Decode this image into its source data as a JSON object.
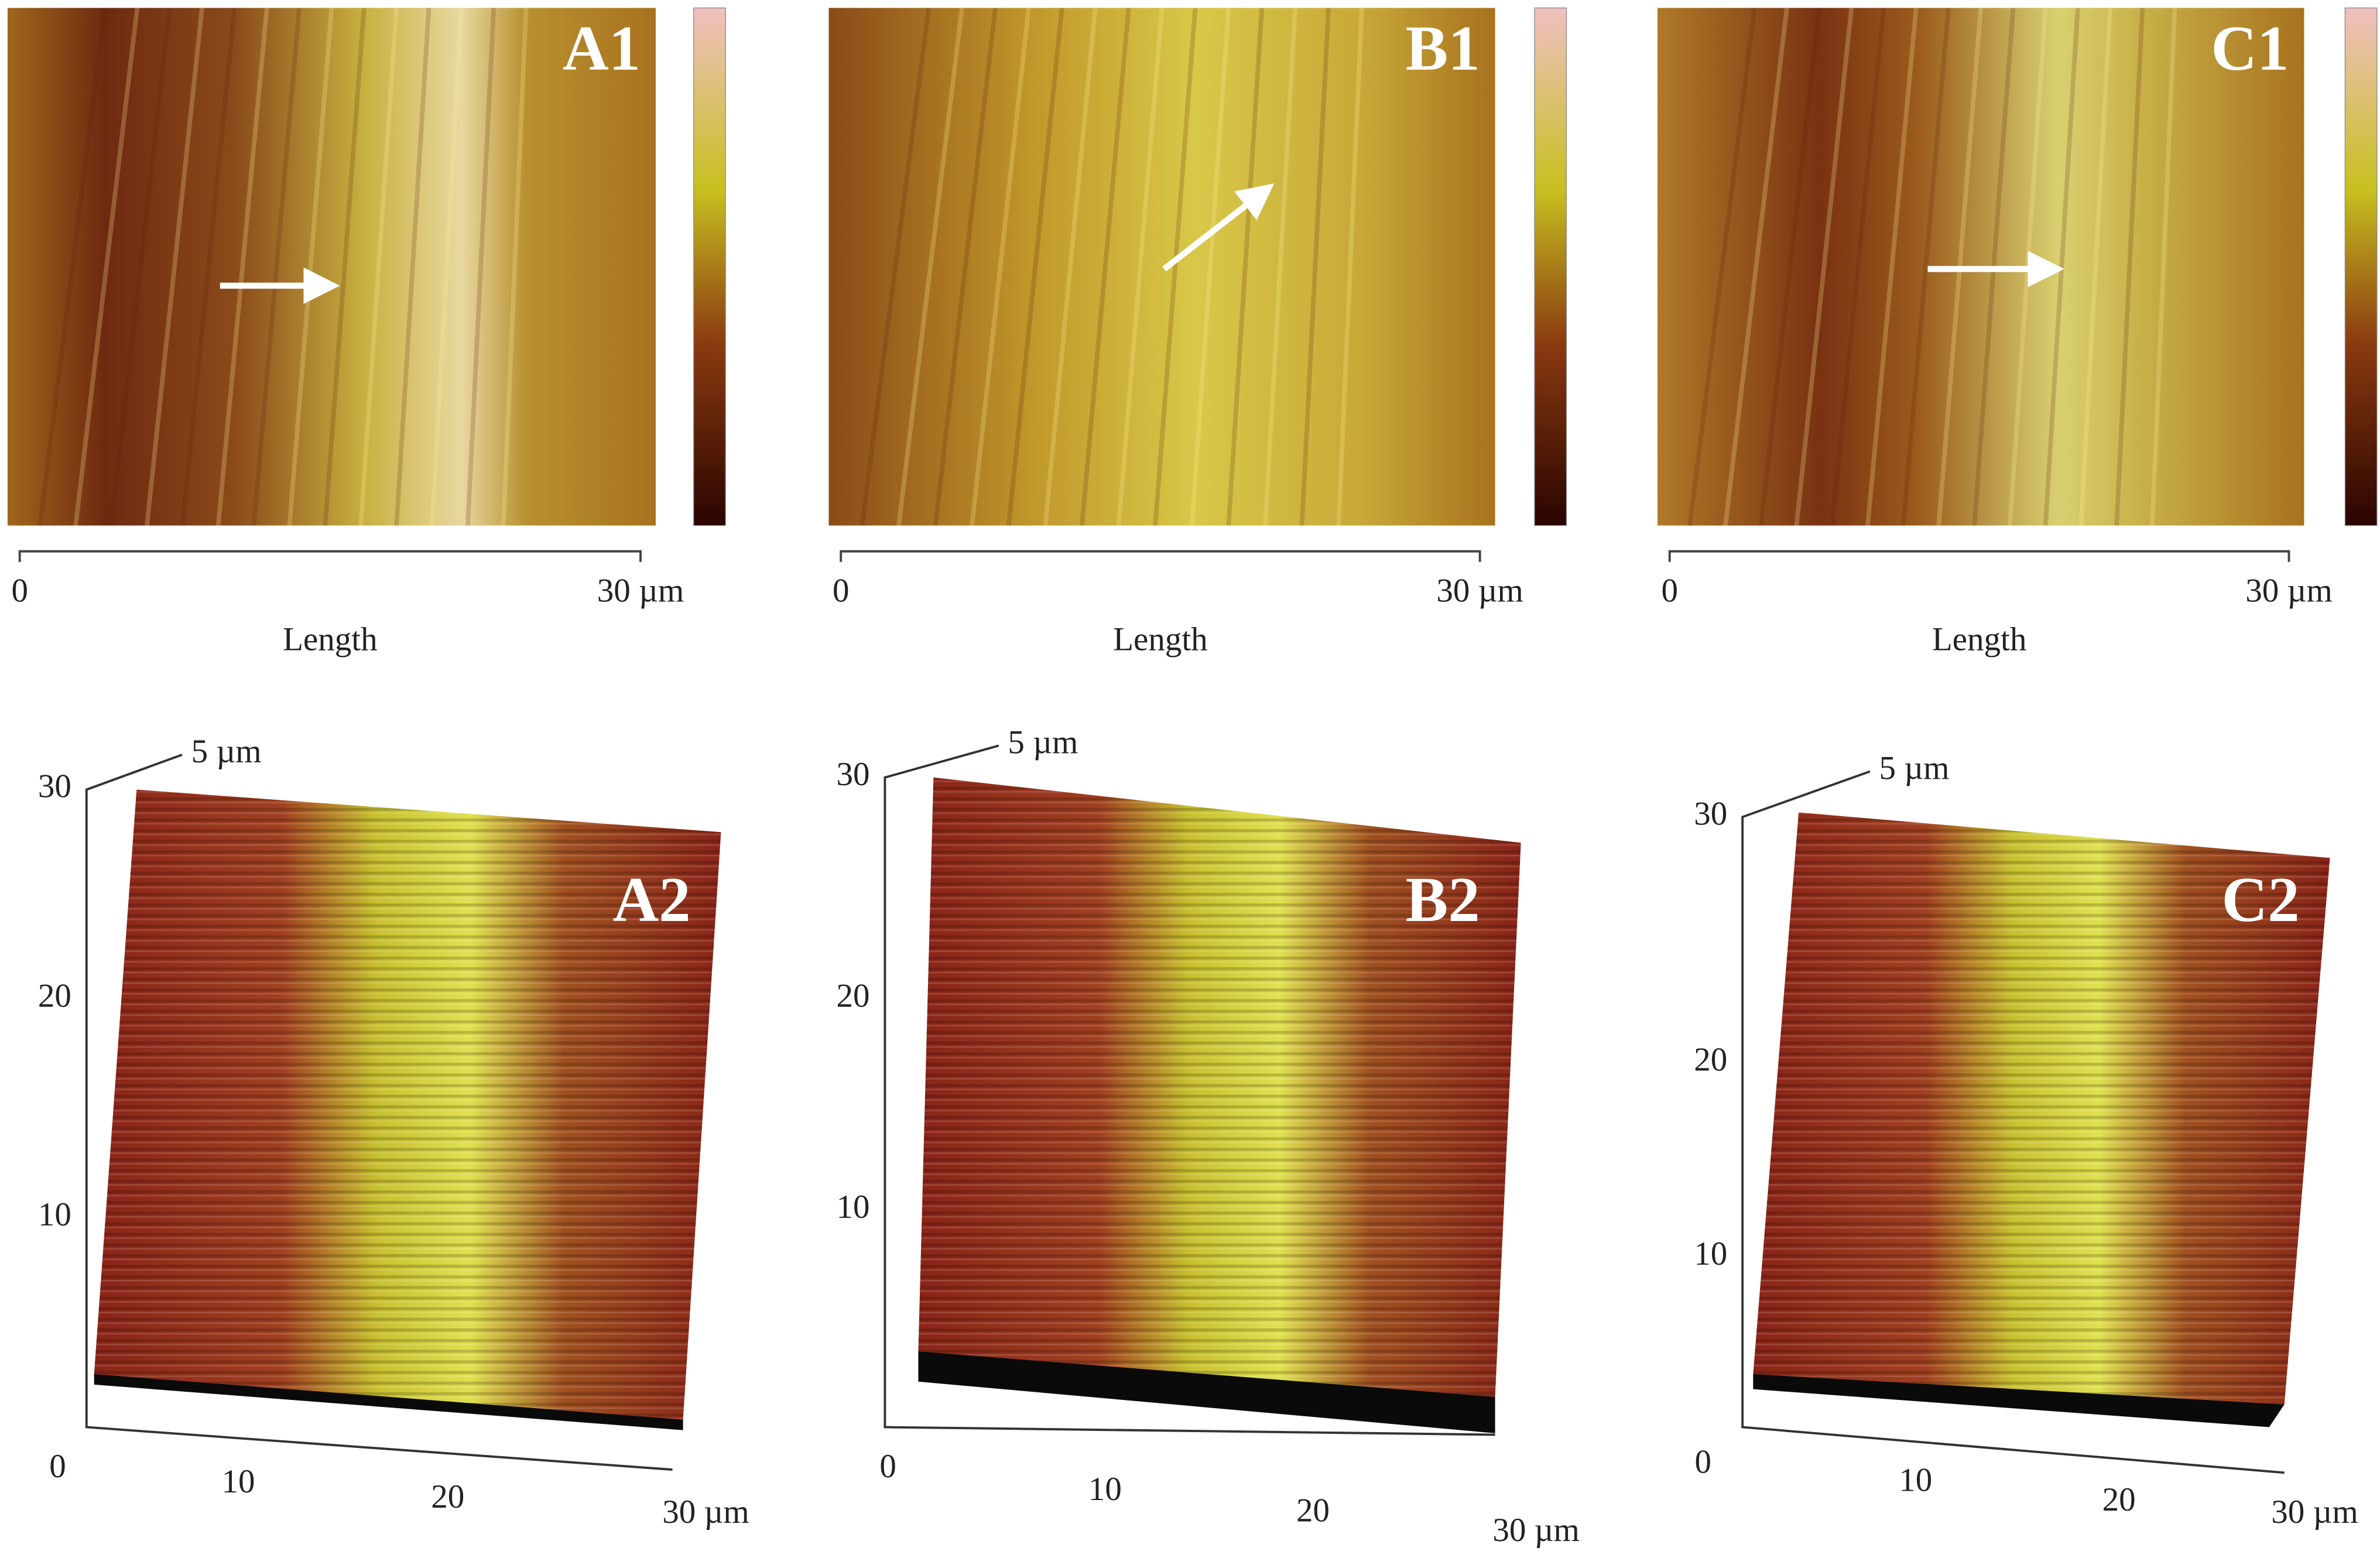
{
  "panels_2d": [
    {
      "label": "A1",
      "scale_start": "0",
      "scale_end": "30 µm",
      "axis_label": "Length"
    },
    {
      "label": "B1",
      "scale_start": "0",
      "scale_end": "30 µm",
      "axis_label": "Length"
    },
    {
      "label": "C1",
      "scale_start": "0",
      "scale_end": "30 µm",
      "axis_label": "Length"
    }
  ],
  "panels_3d": [
    {
      "label": "A2",
      "z_label": "5 µm",
      "y_ticks": [
        "30",
        "20",
        "10"
      ],
      "x_ticks": [
        "0",
        "10",
        "20",
        "30 µm"
      ]
    },
    {
      "label": "B2",
      "z_label": "5 µm",
      "y_ticks": [
        "30",
        "20",
        "10"
      ],
      "x_ticks": [
        "0",
        "10",
        "20",
        "30 µm"
      ]
    },
    {
      "label": "C2",
      "z_label": "5 µm",
      "y_ticks": [
        "30",
        "20",
        "10"
      ],
      "x_ticks": [
        "0",
        "10",
        "20",
        "30 µm"
      ]
    }
  ]
}
